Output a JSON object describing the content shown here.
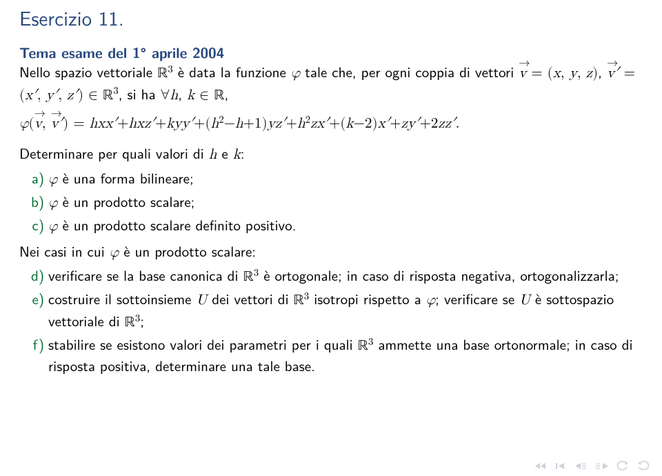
{
  "colors": {
    "title": "#28487e",
    "bold": "#28487e",
    "item_label": "#006e2f",
    "nav_icon": "#c8c9d2",
    "nav_stroke": "#b8b9c6",
    "text": "#000000",
    "background": "#ffffff"
  },
  "fontsizes": {
    "title": 29,
    "body": 21
  },
  "title": "Esercizio 11.",
  "intro_bold": "Tema esame del 1° aprile 2004",
  "intro_rest_html": "Nello spazio vettoriale <span class='bb'>ℝ</span><span class='sup mathup'>3</span> è data la funzione <span class='math'>φ</span> tale che, per ogni coppia di vettori <span class='math'><span class='vec'>v</span></span> <span class='mathup'>= (</span><span class='math'>x</span><span class='mathup'>, </span><span class='math'>y</span><span class='mathup'>, </span><span class='math'>z</span><span class='mathup'>)</span>, <span class='math'><span class='vec'>v</span>′</span> <span class='mathup'>= (</span><span class='math'>x′</span><span class='mathup'>, </span><span class='math'>y′</span><span class='mathup'>, </span><span class='math'>z′</span><span class='mathup'>) ∈ </span><span class='bb'>ℝ</span><span class='sup mathup'>3</span>, si ha <span class='mathup'>∀</span><span class='math'>h</span>, <span class='math'>k</span> <span class='mathup'>∈</span> <span class='bb'>ℝ</span>,",
  "formula_html": "<span class='math'>φ</span><span class='mathup'>(</span><span class='math'><span class='vec'>v</span></span><span class='mathup'>, </span><span class='math'><span class='vec'>v</span>′</span><span class='mathup'>) = </span><span class='math'>hxx′</span><span class='mathup'>+</span><span class='math'>hxz′</span><span class='mathup'>+</span><span class='math'>kyy′</span><span class='mathup'>+(</span><span class='math'>h</span><span class='sup mathup'>2</span><span class='mathup'>−</span><span class='math'>h</span><span class='mathup'>+1)</span><span class='math'>yz′</span><span class='mathup'>+</span><span class='math'>h</span><span class='sup mathup'>2</span><span class='math'>zx′</span><span class='mathup'>+(</span><span class='math'>k</span><span class='mathup'>−2)</span><span class='math'>x′</span><span class='mathup'>+</span><span class='math'>zy′</span><span class='mathup'>+2</span><span class='math'>zz′</span><span class='mathup'>.</span>",
  "det_line_html": "Determinare per quali valori di <span class='math'>h</span> e <span class='math'>k</span>:",
  "items1": [
    {
      "label": "a)",
      "html": "<span class='math'>φ</span> è una forma bilineare;"
    },
    {
      "label": "b)",
      "html": "<span class='math'>φ</span> è un prodotto scalare;"
    },
    {
      "label": "c)",
      "html": "<span class='math'>φ</span> è un prodotto scalare definito positivo."
    }
  ],
  "mid_line_html": "Nei casi in cui <span class='math'>φ</span> è un prodotto scalare:",
  "items2": [
    {
      "label": "d)",
      "html": "verificare se la base canonica di <span class='bb'>ℝ</span><span class='sup mathup'>3</span> è ortogonale; in caso di risposta negativa, ortogonalizzarla;"
    },
    {
      "label": "e)",
      "html": "costruire il sottoinsieme <span class='math'>U</span> dei vettori di <span class='bb'>ℝ</span><span class='sup mathup'>3</span> isotropi rispetto a <span class='math'>φ</span>; verificare se <span class='math'>U</span> è sottospazio vettoriale di <span class='bb'>ℝ</span><span class='sup mathup'>3</span>;"
    },
    {
      "label": "f)",
      "html": "stabilire se esistono valori dei parametri per i quali <span class='bb'>ℝ</span><span class='sup mathup'>3</span> ammette una base ortonormale; in caso di risposta positiva, determinare una tale base."
    }
  ],
  "nav": {
    "groups": [
      {
        "name": "nav-first",
        "icons": [
          "first-triangle",
          "first-bar"
        ]
      },
      {
        "name": "nav-prev-section",
        "icons": [
          "prev-triangle",
          "prev-bracket"
        ]
      },
      {
        "name": "nav-prev",
        "icons": [
          "prev-triangle",
          "prev-line"
        ]
      },
      {
        "name": "nav-next",
        "icons": [
          "next-triangle",
          "next-line"
        ]
      },
      {
        "name": "nav-back",
        "icons": [
          "back-arc"
        ]
      },
      {
        "name": "nav-forward",
        "icons": [
          "fwd-arc"
        ]
      }
    ]
  }
}
